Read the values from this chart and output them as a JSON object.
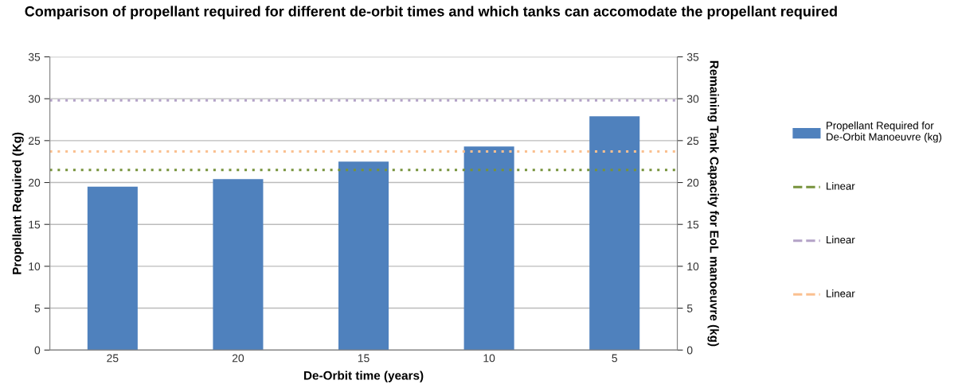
{
  "chart_data": {
    "type": "bar",
    "title": "Comparison of propellant required for different de-orbit times and which tanks can accomodate the propellant required",
    "xlabel": "De-Orbit time (years)",
    "ylabel": "Propellant Required (Kg)",
    "y2label": "Remaining Tank Capacity for EoL manoeuvre (kg)",
    "categories": [
      "25",
      "20",
      "15",
      "10",
      "5"
    ],
    "series": [
      {
        "name": "Propellant Required for De-Orbit Manoeuvre (kg)",
        "color": "#4f81bd",
        "values": [
          19.5,
          20.4,
          22.5,
          24.3,
          27.9
        ]
      }
    ],
    "ref_lines": [
      {
        "axis": "y",
        "value": 21.5,
        "label": "Linear",
        "color": "#77933c",
        "line_style": "dotted"
      },
      {
        "axis": "y",
        "value": 29.8,
        "label": "Linear",
        "color": "#b3a2c7",
        "line_style": "dotted"
      },
      {
        "axis": "y",
        "value": 23.7,
        "label": "Linear",
        "color": "#fac090",
        "line_style": "dotted"
      }
    ],
    "ylim": [
      0,
      35
    ],
    "yticks": [
      0,
      5,
      10,
      15,
      20,
      25,
      30,
      35
    ],
    "y2lim": [
      0,
      35
    ],
    "y2ticks": [
      0,
      5,
      10,
      15,
      20,
      25,
      30,
      35
    ],
    "grid": "y",
    "legend": "right"
  }
}
